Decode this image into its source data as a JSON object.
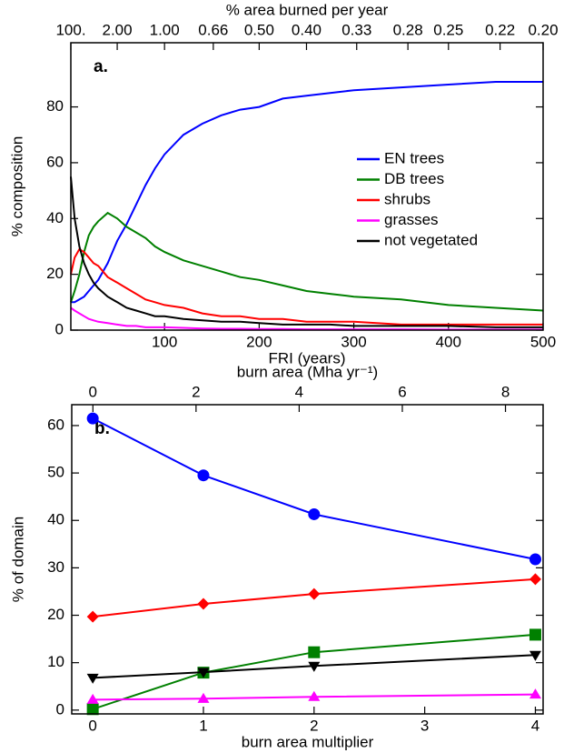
{
  "chart_data": [
    {
      "type": "line",
      "panel_label": "a.",
      "xlabel": "FRI (years)",
      "ylabel": "% composition",
      "x2label": "% area burned per year",
      "x2scale": "reciprocal",
      "x": [
        1,
        5,
        10,
        15,
        20,
        25,
        30,
        40,
        50,
        60,
        70,
        80,
        90,
        100,
        120,
        140,
        160,
        180,
        200,
        225,
        250,
        275,
        300,
        350,
        400,
        450,
        500
      ],
      "series": [
        {
          "name": "EN trees",
          "color": "#0000ff",
          "values": [
            10,
            10,
            11,
            12,
            14,
            16,
            18,
            24,
            32,
            38,
            45,
            52,
            58,
            63,
            70,
            74,
            77,
            79,
            80,
            83,
            84,
            85,
            86,
            87,
            88,
            89,
            89
          ]
        },
        {
          "name": "DB trees",
          "color": "#008000",
          "values": [
            10,
            14,
            20,
            28,
            34,
            37,
            39,
            42,
            40,
            37,
            35,
            33,
            30,
            28,
            25,
            23,
            21,
            19,
            18,
            16,
            14,
            13,
            12,
            11,
            9,
            8,
            7
          ]
        },
        {
          "name": "shrubs",
          "color": "#ff0000",
          "values": [
            20,
            26,
            29,
            28,
            26,
            24,
            23,
            19,
            17,
            15,
            13,
            11,
            10,
            9,
            8,
            6,
            5,
            5,
            4,
            4,
            3,
            3,
            3,
            2,
            2,
            2,
            2
          ]
        },
        {
          "name": "grasses",
          "color": "#ff00ff",
          "values": [
            8,
            7,
            6,
            5,
            4,
            3.5,
            3,
            2.5,
            2,
            1.5,
            1.5,
            1,
            1,
            1,
            0.8,
            0.6,
            0.5,
            0.5,
            0.4,
            0.4,
            0.3,
            0.3,
            0.3,
            0.3,
            0.2,
            0.2,
            0.2
          ]
        },
        {
          "name": "not vegetated",
          "color": "#000000",
          "values": [
            55,
            40,
            30,
            24,
            20,
            17,
            15,
            12,
            10,
            8,
            7,
            6,
            5,
            5,
            4,
            3.5,
            3,
            3,
            2.5,
            2,
            2,
            2,
            1.5,
            1.5,
            1.5,
            1,
            1
          ]
        }
      ],
      "xlim": [
        1,
        500
      ],
      "xticks": [
        100,
        200,
        300,
        400,
        500
      ],
      "ylim": [
        0,
        103
      ],
      "yticks": [
        0,
        20,
        40,
        60,
        80
      ],
      "x2ticks": [
        {
          "value": 100,
          "label": "100."
        },
        {
          "value": 2,
          "label": "2.00"
        },
        {
          "value": 1,
          "label": "1.00"
        },
        0.66,
        {
          "value": 0.5,
          "label": "0.50"
        },
        {
          "value": 0.4,
          "label": "0.40"
        },
        0.33,
        0.28,
        0.25,
        0.22,
        {
          "value": 0.2,
          "label": "0.20"
        }
      ],
      "legend": "right"
    },
    {
      "type": "line",
      "panel_label": "b.",
      "xlabel": "burn area multiplier",
      "ylabel": "% of domain",
      "x2label": "burn area (Mha yr⁻¹)",
      "x2scale": "linear",
      "x": [
        0,
        1,
        2,
        4
      ],
      "series": [
        {
          "color": "#0000ff",
          "marker": "circle",
          "values": [
            61.5,
            49.5,
            41.3,
            31.8
          ]
        },
        {
          "color": "#ff0000",
          "marker": "diamond",
          "values": [
            19.7,
            22.4,
            24.5,
            27.6
          ]
        },
        {
          "color": "#008000",
          "marker": "square",
          "values": [
            0.2,
            7.9,
            12.2,
            15.9
          ]
        },
        {
          "color": "#000000",
          "marker": "triangle-down",
          "values": [
            6.8,
            8.0,
            9.3,
            11.6
          ]
        },
        {
          "color": "#ff00ff",
          "marker": "triangle-up",
          "values": [
            2.2,
            2.4,
            2.8,
            3.3
          ]
        }
      ],
      "xlim": [
        -0.19,
        4.07
      ],
      "xticks": [
        0,
        1,
        2,
        3,
        4
      ],
      "ylim": [
        -0.8,
        64.4
      ],
      "yticks": [
        0,
        10,
        20,
        30,
        40,
        50,
        60
      ],
      "x2lim": [
        -0.41,
        8.73
      ],
      "x2ticks": [
        0,
        2,
        4,
        6,
        8
      ]
    }
  ]
}
